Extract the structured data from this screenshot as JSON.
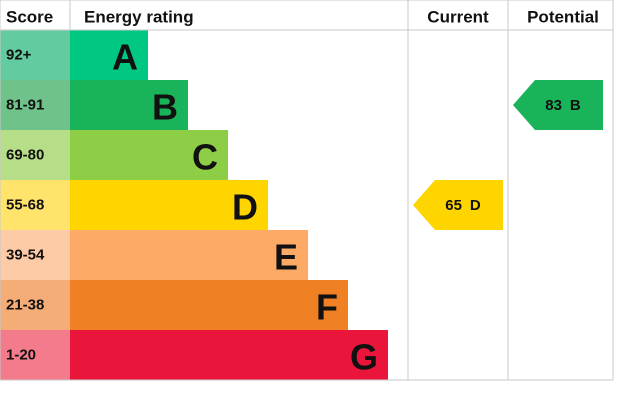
{
  "header": {
    "score": "Score",
    "energy_rating": "Energy rating",
    "current": "Current",
    "potential": "Potential"
  },
  "bands": [
    {
      "score": "92+",
      "rating": "A",
      "color": "#00c781",
      "score_color": "#63cba0"
    },
    {
      "score": "81-91",
      "rating": "B",
      "color": "#19b459",
      "score_color": "#6fc38a"
    },
    {
      "score": "69-80",
      "rating": "C",
      "color": "#8dce46",
      "score_color": "#b6dd87"
    },
    {
      "score": "55-68",
      "rating": "D",
      "color": "#ffd500",
      "score_color": "#ffe36b"
    },
    {
      "score": "39-54",
      "rating": "E",
      "color": "#fcaa65",
      "score_color": "#fdcba6"
    },
    {
      "score": "21-38",
      "rating": "F",
      "color": "#ef8023",
      "score_color": "#f5ad78"
    },
    {
      "score": "1-20",
      "rating": "G",
      "color": "#e9153b",
      "score_color": "#f37b8c"
    }
  ],
  "current": {
    "value": 65,
    "rating": "D"
  },
  "potential": {
    "value": 83,
    "rating": "B"
  }
}
